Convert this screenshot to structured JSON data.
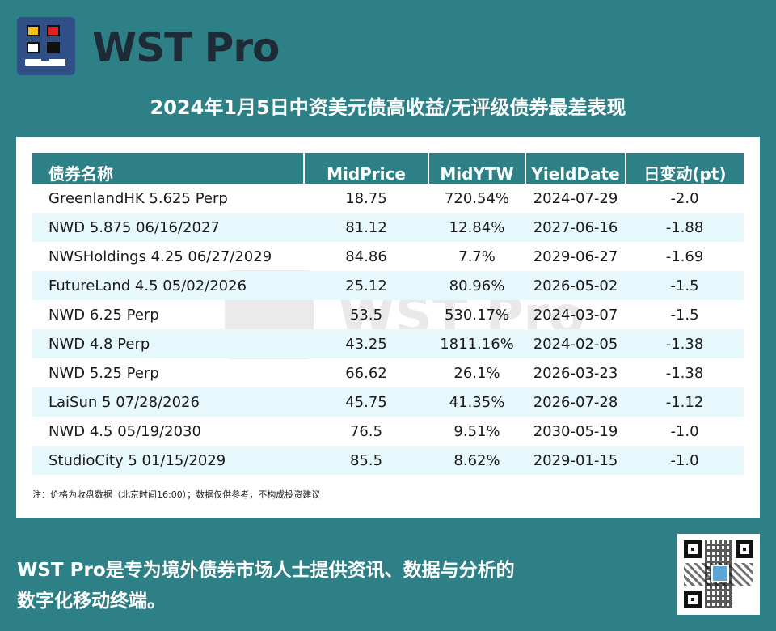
{
  "brand": {
    "name": "WST Pro",
    "logo_icon": "wst-pro-logo-icon"
  },
  "title": "2024年1月5日中资美元债高收益/无评级债券最差表现",
  "table": {
    "headers": [
      "债券名称",
      "MidPrice",
      "MidYTW",
      "YieldDate",
      "日变动(pt)"
    ],
    "rows": [
      [
        "GreenlandHK 5.625 Perp",
        "18.75",
        "720.54%",
        "2024-07-29",
        "-2.0"
      ],
      [
        "NWD 5.875 06/16/2027",
        "81.12",
        "12.84%",
        "2027-06-16",
        "-1.88"
      ],
      [
        "NWSHoldings 4.25 06/27/2029",
        "84.86",
        "7.7%",
        "2029-06-27",
        "-1.69"
      ],
      [
        "FutureLand 4.5 05/02/2026",
        "25.12",
        "80.96%",
        "2026-05-02",
        "-1.5"
      ],
      [
        "NWD 6.25 Perp",
        "53.5",
        "530.17%",
        "2024-03-07",
        "-1.5"
      ],
      [
        "NWD 4.8 Perp",
        "43.25",
        "1811.16%",
        "2024-02-05",
        "-1.38"
      ],
      [
        "NWD 5.25 Perp",
        "66.62",
        "26.1%",
        "2026-03-23",
        "-1.38"
      ],
      [
        "LaiSun 5 07/28/2026",
        "45.75",
        "41.35%",
        "2026-07-28",
        "-1.12"
      ],
      [
        "NWD 4.5 05/19/2030",
        "76.5",
        "9.51%",
        "2030-05-19",
        "-1.0"
      ],
      [
        "StudioCity 5 01/15/2029",
        "85.5",
        "8.62%",
        "2029-01-15",
        "-1.0"
      ]
    ]
  },
  "note": "注：价格为收盘数据（北京时间16:00）；数据仅供参考，不构成投资建议",
  "watermark": "WST Pro",
  "footer": {
    "line1": "WST Pro是专为境外债券市场人士提供资讯、数据与分析的",
    "line2": "数字化移动终端。"
  },
  "qr_icon": "qr-code-icon",
  "colors": {
    "background": "#2d8186",
    "header": "#2d8186",
    "stripe": "#e6f8fb",
    "logo": "#2f4f86"
  }
}
